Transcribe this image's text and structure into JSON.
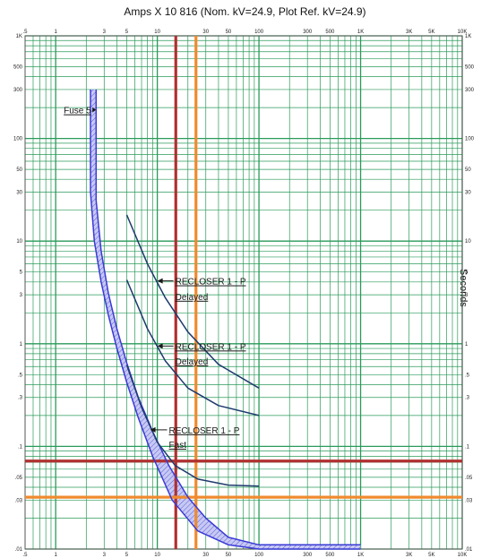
{
  "chart_data": {
    "type": "line",
    "title": "Amps  X  10   816 (Nom. kV=24.9, Plot Ref. kV=24.9)",
    "xlabel": "",
    "ylabel": "Seconds",
    "xscale": "log",
    "yscale": "log",
    "xlim": [
      0.5,
      10000
    ],
    "ylim": [
      0.01,
      1000
    ],
    "grid": true,
    "x_ticks": [
      {
        "v": 0.5,
        "label": ".5"
      },
      {
        "v": 1,
        "label": "1"
      },
      {
        "v": 3,
        "label": "3"
      },
      {
        "v": 5,
        "label": "5"
      },
      {
        "v": 10,
        "label": "10"
      },
      {
        "v": 30,
        "label": "30"
      },
      {
        "v": 50,
        "label": "50"
      },
      {
        "v": 100,
        "label": "100"
      },
      {
        "v": 300,
        "label": "300"
      },
      {
        "v": 500,
        "label": "500"
      },
      {
        "v": 1000,
        "label": "1K"
      },
      {
        "v": 3000,
        "label": "3K"
      },
      {
        "v": 5000,
        "label": "5K"
      },
      {
        "v": 10000,
        "label": "10K"
      }
    ],
    "y_ticks": [
      {
        "v": 1000,
        "label": "1K"
      },
      {
        "v": 500,
        "label": "500"
      },
      {
        "v": 300,
        "label": "300"
      },
      {
        "v": 100,
        "label": "100"
      },
      {
        "v": 50,
        "label": "50"
      },
      {
        "v": 30,
        "label": "30"
      },
      {
        "v": 10,
        "label": "10"
      },
      {
        "v": 5,
        "label": "5"
      },
      {
        "v": 3,
        "label": "3"
      },
      {
        "v": 1,
        "label": "1"
      },
      {
        "v": 0.5,
        "label": ".5"
      },
      {
        "v": 0.3,
        "label": ".3"
      },
      {
        "v": 0.1,
        "label": ".1"
      },
      {
        "v": 0.05,
        "label": ".05"
      },
      {
        "v": 0.03,
        "label": ".03"
      },
      {
        "v": 0.01,
        "label": ".01"
      }
    ],
    "series": [
      {
        "name": "Fuse 5",
        "role": "fuse-min",
        "color": "#3a3ad6",
        "x": [
          2.2,
          2.2,
          2.4,
          2.8,
          3.3,
          4,
          5,
          6.5,
          9,
          14,
          25,
          50,
          100,
          1000
        ],
        "y": [
          300,
          30,
          10,
          4,
          1.9,
          0.9,
          0.42,
          0.19,
          0.08,
          0.03,
          0.015,
          0.011,
          0.01,
          0.01
        ]
      },
      {
        "name": "",
        "role": "fuse-max",
        "color": "#3a3ad6",
        "x": [
          2.5,
          2.5,
          2.8,
          3.3,
          4,
          5,
          6.5,
          9,
          13,
          20,
          30,
          50,
          100,
          1000
        ],
        "y": [
          300,
          25,
          8,
          3.1,
          1.4,
          0.65,
          0.3,
          0.14,
          0.065,
          0.032,
          0.02,
          0.013,
          0.011,
          0.011
        ]
      },
      {
        "name": "RECLOSER 1 - P Delayed",
        "color": "#1e3a6e",
        "x": [
          5,
          8,
          12,
          20,
          40,
          100
        ],
        "y": [
          18,
          6,
          2.8,
          1.3,
          0.63,
          0.37
        ]
      },
      {
        "name": "RECLOSER 1 - P Delayed",
        "color": "#1e3a6e",
        "x": [
          5,
          8,
          12,
          20,
          40,
          100
        ],
        "y": [
          4.2,
          1.4,
          0.68,
          0.37,
          0.25,
          0.2
        ]
      },
      {
        "name": "RECLOSER 1 - P Fast",
        "color": "#1e3a6e",
        "x": [
          5,
          7,
          10,
          15,
          25,
          50,
          100
        ],
        "y": [
          0.62,
          0.24,
          0.11,
          0.065,
          0.048,
          0.042,
          0.041
        ]
      }
    ],
    "labels": [
      {
        "text": "Fuse 5",
        "x": 1.2,
        "y": 190,
        "arrow_to": [
          2.2,
          190
        ]
      },
      {
        "text": "RECLOSER 1 - P",
        "x": 15,
        "y": 4.1,
        "arrow_to": [
          10,
          4.1
        ]
      },
      {
        "text": "Delayed",
        "x": 15,
        "y": 2.9
      },
      {
        "text": "RECLOSER 1 - P",
        "x": 15,
        "y": 0.95,
        "arrow_to": [
          10,
          0.95
        ]
      },
      {
        "text": "Delayed",
        "x": 15,
        "y": 0.68
      },
      {
        "text": "RECLOSER 1 - P",
        "x": 13,
        "y": 0.145,
        "arrow_to": [
          8.5,
          0.145
        ]
      },
      {
        "text": "Fast",
        "x": 13,
        "y": 0.105
      }
    ],
    "reference_lines": [
      {
        "orientation": "vertical",
        "value": 15.2,
        "color": "#b03030"
      },
      {
        "orientation": "vertical",
        "value": 24,
        "color": "#f08a2e"
      },
      {
        "orientation": "horizontal",
        "value": 0.072,
        "color": "#b03030"
      },
      {
        "orientation": "horizontal",
        "value": 0.032,
        "color": "#f08a2e"
      }
    ],
    "colors": {
      "grid": "#2a9a5a",
      "frame": "#555555"
    }
  }
}
